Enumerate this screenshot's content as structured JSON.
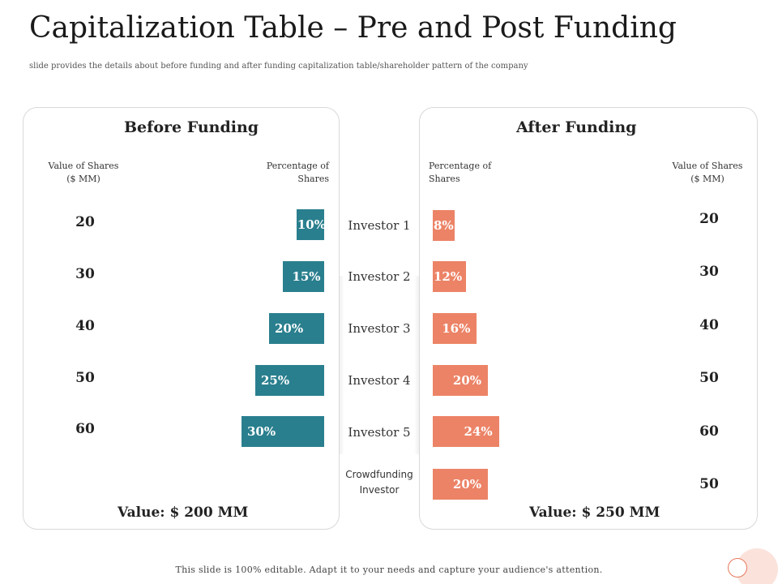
{
  "title": "Capitalization Table – Pre and Post Funding",
  "subtitle": "slide provides the details about before funding and after funding capitalization table/shareholder pattern of the company",
  "before": {
    "heading": "Before Funding",
    "value_head": [
      "Value of Shares",
      "($ MM)"
    ],
    "pct_head": [
      "Percentage of",
      "Shares"
    ],
    "total_label": "Value: $ 200 MM",
    "color": "#2a7f8e"
  },
  "after": {
    "heading": "After Funding",
    "value_head": [
      "Value of Shares",
      "($ MM)"
    ],
    "pct_head": [
      "Percentage of",
      "Shares"
    ],
    "total_label": "Value: $ 250 MM",
    "color": "#ec8366"
  },
  "investors": [
    "Investor 1",
    "Investor 2",
    "Investor 3",
    "Investor 4",
    "Investor 5",
    "Crowdfunding Investor"
  ],
  "chart_data": [
    {
      "type": "bar",
      "title": "Before Funding",
      "categories": [
        "Investor 1",
        "Investor 2",
        "Investor 3",
        "Investor 4",
        "Investor 5"
      ],
      "series": [
        {
          "name": "Percentage of Shares",
          "values": [
            10,
            15,
            20,
            25,
            30
          ],
          "labels": [
            "10%",
            "15%",
            "20%",
            "25%",
            "30%"
          ]
        },
        {
          "name": "Value of Shares ($ MM)",
          "values": [
            20,
            30,
            40,
            50,
            60
          ]
        }
      ],
      "orientation": "horizontal",
      "direction": "right-to-left",
      "total": "Value: $ 200 MM"
    },
    {
      "type": "bar",
      "title": "After Funding",
      "categories": [
        "Investor 1",
        "Investor 2",
        "Investor 3",
        "Investor 4",
        "Investor 5",
        "Crowdfunding Investor"
      ],
      "series": [
        {
          "name": "Percentage of Shares",
          "values": [
            8,
            12,
            16,
            20,
            24,
            20
          ],
          "labels": [
            "8%",
            "12%",
            "16%",
            "20%",
            "24%",
            "20%"
          ]
        },
        {
          "name": "Value of Shares ($ MM)",
          "values": [
            20,
            30,
            40,
            50,
            60,
            50
          ]
        }
      ],
      "orientation": "horizontal",
      "direction": "left-to-right",
      "total": "Value: $ 250 MM"
    }
  ],
  "footer": "This slide is 100% editable.  Adapt it to your needs and capture your audience's attention."
}
